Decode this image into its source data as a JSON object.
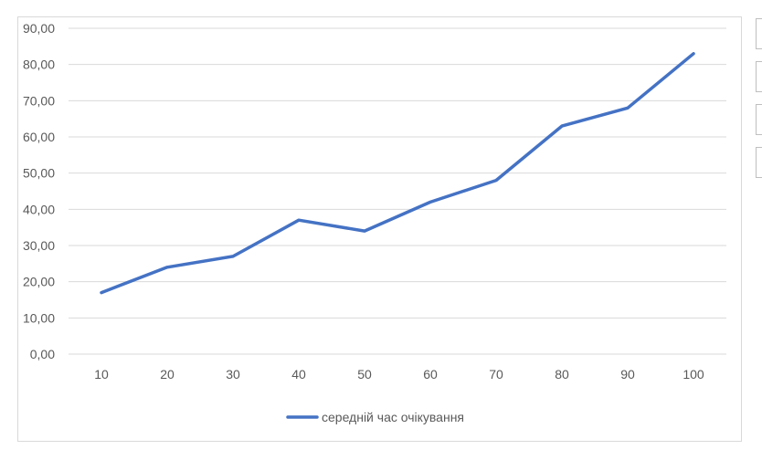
{
  "chart_data": {
    "type": "line",
    "categories": [
      "10",
      "20",
      "30",
      "40",
      "50",
      "60",
      "70",
      "80",
      "90",
      "100"
    ],
    "series": [
      {
        "name": "середній час очікування",
        "values": [
          17,
          24,
          27,
          37,
          34,
          42,
          48,
          63,
          68,
          83
        ],
        "color": "#4472c4"
      }
    ],
    "yticks": [
      "0,00",
      "10,00",
      "20,00",
      "30,00",
      "40,00",
      "50,00",
      "60,00",
      "70,00",
      "80,00",
      "90,00"
    ],
    "ylim": [
      0,
      90
    ],
    "grid": true,
    "legend": "bottom",
    "title": "",
    "xlabel": "",
    "ylabel": ""
  },
  "colors": {
    "series": "#4472c4",
    "grid": "#d9d9d9",
    "text": "#595959"
  }
}
